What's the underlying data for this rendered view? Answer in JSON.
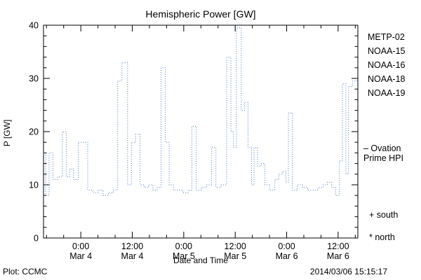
{
  "page": {
    "background": "#ffffff"
  },
  "chart_data": {
    "type": "line",
    "title": "Hemispheric Power [GW]",
    "ylabel": "P [GW]",
    "xlabel": "Date and Time",
    "ylim": [
      0,
      40
    ],
    "yticks": [
      0,
      10,
      20,
      30,
      40
    ],
    "y_minor_step": 2,
    "xlim_hours": [
      -8.7,
      64.6
    ],
    "x_minor_step_hours": 4,
    "x_ticks": [
      {
        "t": 0,
        "time": "0:00",
        "date": "Mar 4"
      },
      {
        "t": 12,
        "time": "12:00",
        "date": "Mar 4"
      },
      {
        "t": 24,
        "time": "0:00",
        "date": "Mar 5"
      },
      {
        "t": 36,
        "time": "12:00",
        "date": "Mar 5"
      },
      {
        "t": 48,
        "time": "0:00",
        "date": "Mar 6"
      },
      {
        "t": 60,
        "time": "12:00",
        "date": "Mar 6"
      }
    ],
    "grid": false,
    "legend_position": "right",
    "line_color": "#4a76c4",
    "line_style": "dotted-step",
    "series": [
      {
        "name": "Ovation Prime HPI",
        "units": "GW",
        "points": [
          [
            -8.7,
            16
          ],
          [
            -8.2,
            8
          ],
          [
            -7.4,
            16
          ],
          [
            -6.5,
            11
          ],
          [
            -5.4,
            11.5
          ],
          [
            -4.3,
            20
          ],
          [
            -3.4,
            11.5
          ],
          [
            -2.6,
            13
          ],
          [
            -1.7,
            11
          ],
          [
            -0.6,
            18
          ],
          [
            1.6,
            9
          ],
          [
            2.8,
            8.5
          ],
          [
            4.0,
            9
          ],
          [
            5.2,
            8
          ],
          [
            6.4,
            8.5
          ],
          [
            7.6,
            9
          ],
          [
            8.6,
            29.5
          ],
          [
            9.6,
            33
          ],
          [
            10.9,
            10
          ],
          [
            11.8,
            18
          ],
          [
            12.8,
            19.5
          ],
          [
            13.8,
            10
          ],
          [
            14.8,
            9.5
          ],
          [
            15.8,
            10
          ],
          [
            16.8,
            9
          ],
          [
            17.8,
            9.5
          ],
          [
            18.7,
            32
          ],
          [
            19.7,
            18
          ],
          [
            20.6,
            10
          ],
          [
            21.6,
            9
          ],
          [
            22.8,
            9
          ],
          [
            23.8,
            8.5
          ],
          [
            25.0,
            9
          ],
          [
            25.9,
            21
          ],
          [
            26.9,
            9
          ],
          [
            28.1,
            9.5
          ],
          [
            29.3,
            10
          ],
          [
            30.5,
            17
          ],
          [
            31.5,
            9.5
          ],
          [
            32.7,
            10
          ],
          [
            34.0,
            34
          ],
          [
            35.0,
            20
          ],
          [
            35.6,
            17
          ],
          [
            36.3,
            39.5
          ],
          [
            37.4,
            24
          ],
          [
            38.2,
            25.5
          ],
          [
            39.0,
            17
          ],
          [
            39.8,
            10
          ],
          [
            40.4,
            17
          ],
          [
            41.2,
            13.5
          ],
          [
            42.0,
            14
          ],
          [
            42.9,
            10
          ],
          [
            44.0,
            9
          ],
          [
            45.2,
            11
          ],
          [
            46.2,
            12
          ],
          [
            47.0,
            12.5
          ],
          [
            47.8,
            10.5
          ],
          [
            48.4,
            23.5
          ],
          [
            49.3,
            9
          ],
          [
            50.5,
            10
          ],
          [
            51.7,
            9.5
          ],
          [
            52.9,
            9
          ],
          [
            54.1,
            9
          ],
          [
            55.3,
            9.5
          ],
          [
            56.5,
            10
          ],
          [
            57.5,
            10.5
          ],
          [
            58.5,
            9.5
          ],
          [
            59.4,
            8
          ],
          [
            60.3,
            14.5
          ],
          [
            61.0,
            29
          ],
          [
            61.8,
            12
          ],
          [
            62.4,
            28.5
          ],
          [
            63.4,
            29.5
          ],
          [
            64.6,
            29.5
          ]
        ]
      }
    ],
    "legend": [
      {
        "label": "METP-02",
        "color": "#000000"
      },
      {
        "label": "NOAA-15",
        "color": "#2b4fd0"
      },
      {
        "label": "NOAA-16",
        "color": "#35c4e8"
      },
      {
        "label": "NOAA-18",
        "color": "#9fd9ab"
      },
      {
        "label": "NOAA-19",
        "color": "#f2a33c"
      }
    ],
    "annotations": {
      "ovation_label_line1": "– Ovation",
      "ovation_label_line2": "Prime HPI",
      "ovation_color": "#2b4fd0",
      "south_marker": "+ south",
      "north_marker": "* north"
    }
  },
  "footer": {
    "plot_credit": "Plot: CCMC",
    "timestamp": "2014/03/06 15:15:17"
  }
}
